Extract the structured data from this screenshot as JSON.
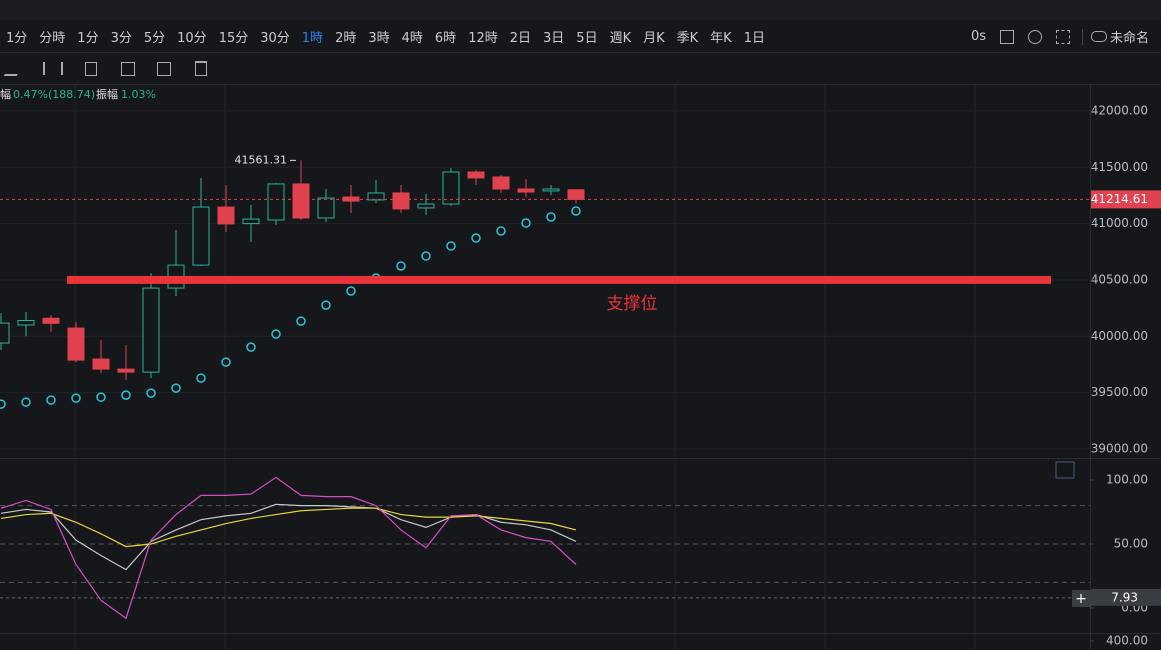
{
  "toolbar": {
    "intervals": [
      "1分",
      "分時",
      "1分",
      "3分",
      "5分",
      "10分",
      "15分",
      "30分",
      "1時",
      "2時",
      "3時",
      "4時",
      "6時",
      "12時",
      "2日",
      "3日",
      "5日",
      "週K",
      "月K",
      "季K",
      "年K",
      "1日"
    ],
    "active": "1時",
    "active_color": "#2f80ed",
    "refresh": "0s",
    "layout_name": "未命名"
  },
  "stats": {
    "change_label": "幅",
    "change": "0.47%(188.74)",
    "amplitude_label": "振幅",
    "amplitude": "1.03%"
  },
  "chart_data": [
    {
      "type": "candlestick",
      "categories": [
        null,
        null,
        null,
        null,
        null,
        null,
        null,
        null,
        null,
        null,
        null,
        null,
        null,
        null,
        null,
        null,
        null,
        null,
        null,
        null,
        null,
        null,
        null,
        null
      ],
      "open": [
        39940,
        40100,
        40160,
        40073,
        39798,
        39709,
        39682,
        40428,
        40632,
        41147,
        41000,
        41032,
        41352,
        41050,
        41236,
        41210,
        41272,
        41139,
        41174,
        41458,
        41414,
        41307,
        41290,
        41300
      ],
      "high": [
        40206,
        40215,
        40190,
        40126,
        39966,
        39922,
        40561,
        40943,
        41405,
        41343,
        41165,
        41361,
        41561.31,
        41307,
        41343,
        41387,
        41343,
        41263,
        41494,
        41476,
        41432,
        41396,
        41343,
        41300
      ],
      "low": [
        39878,
        40000,
        40040,
        39771,
        39673,
        39611,
        39629,
        40357,
        40624,
        40926,
        40837,
        40988,
        41032,
        41014,
        41094,
        41183,
        41094,
        41076,
        41156,
        41343,
        41272,
        41236,
        41254,
        41180
      ],
      "close": [
        40117,
        40140,
        40115,
        39789,
        39709,
        39682,
        40428,
        40632,
        41147,
        40997,
        41040,
        41352,
        41050,
        41227,
        41200,
        41272,
        41130,
        41174,
        41458,
        41405,
        41307,
        41280,
        41307,
        41214.61
      ],
      "up_color": "#26b39a",
      "down_color": "#e0434f",
      "sar": {
        "values": [
          39398,
          39416,
          39434,
          39451,
          39460,
          39478,
          39496,
          39540,
          39629,
          39771,
          39904,
          40020,
          40135,
          40277,
          40402,
          40517,
          40624,
          40712,
          40801,
          40872,
          40934,
          41005,
          41059,
          41112
        ],
        "color": "#2ec4d6"
      },
      "support": {
        "value": 40500,
        "label": "支撑位",
        "color": "#e8343a"
      },
      "ylim": [
        38920,
        42230
      ],
      "yticks": [
        {
          "value": 39000,
          "label": "39000.00"
        },
        {
          "value": 39500,
          "label": "39500.00"
        },
        {
          "value": 40000,
          "label": "40000.00"
        },
        {
          "value": 40500,
          "label": "40500.00"
        },
        {
          "value": 41000,
          "label": "41000.00"
        },
        {
          "value": 41500,
          "label": "41500.00"
        },
        {
          "value": 42000,
          "label": "42000.00"
        }
      ],
      "grid": true
    },
    {
      "type": "line",
      "series": [
        {
          "name": "K",
          "color": "#c8c8c8",
          "values": [
            74,
            77,
            75,
            53,
            41,
            30,
            52,
            61,
            69,
            72,
            74,
            81,
            80,
            80,
            79,
            78,
            69,
            63,
            71,
            73,
            67,
            65,
            61,
            52
          ]
        },
        {
          "name": "D",
          "color": "#e6d83a",
          "values": [
            70,
            73,
            74,
            67,
            58,
            48,
            50,
            56,
            61,
            66,
            70,
            73,
            76,
            77,
            78,
            78,
            73,
            71,
            71,
            72,
            70,
            68,
            66,
            61
          ]
        },
        {
          "name": "J",
          "color": "#d54fc4",
          "values": [
            78,
            84,
            77,
            34,
            6,
            -8,
            53,
            73,
            88,
            88,
            89,
            102,
            88,
            87,
            87,
            80,
            61,
            47,
            72,
            73,
            61,
            55,
            52,
            34
          ]
        }
      ],
      "ylim": [
        -19.5,
        116.4
      ],
      "yticks": [
        {
          "value": 0,
          "label": "0.00"
        },
        {
          "value": 50,
          "label": "50.00"
        },
        {
          "value": 100,
          "label": "100.00"
        }
      ],
      "hlines": [
        80,
        50,
        20
      ],
      "marker": 7.93
    },
    {
      "type": "bar",
      "ylim": [
        100,
        660
      ],
      "yticks": [
        {
          "value": 400,
          "label": "400.00"
        }
      ]
    }
  ]
}
